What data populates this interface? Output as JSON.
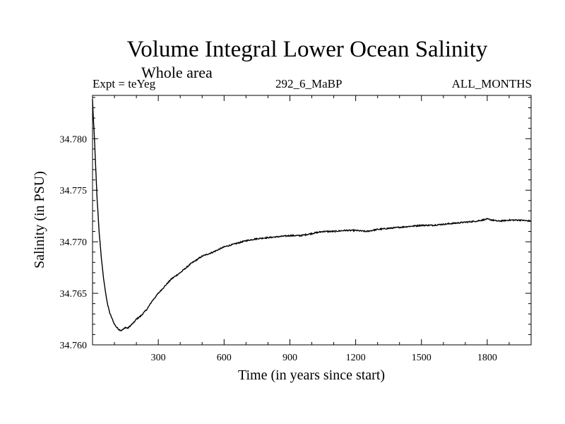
{
  "chart_data": {
    "type": "line",
    "title": "Volume Integral Lower Ocean Salinity",
    "subtitle": "Whole area",
    "left_string": "Expt = teYeg",
    "center_string": "292_6_MaBP",
    "right_string": "ALL_MONTHS",
    "xlabel": "Time (in years since start)",
    "ylabel": "Salinity (in PSU)",
    "xlim": [
      0,
      2000
    ],
    "ylim": [
      34.76,
      34.7842
    ],
    "xticks": [
      300,
      600,
      900,
      1200,
      1500,
      1800
    ],
    "xtick_labels": [
      "300",
      "600",
      "900",
      "1200",
      "1500",
      "1800"
    ],
    "yticks": [
      34.76,
      34.765,
      34.77,
      34.775,
      34.78
    ],
    "ytick_labels": [
      "34.760",
      "34.765",
      "34.770",
      "34.775",
      "34.780"
    ],
    "grid": false,
    "series": [
      {
        "name": "salinity",
        "x": [
          0,
          5,
          10,
          20,
          30,
          40,
          50,
          60,
          70,
          80,
          90,
          100,
          110,
          120,
          130,
          140,
          150,
          160,
          170,
          180,
          190,
          200,
          220,
          250,
          270,
          300,
          330,
          360,
          400,
          450,
          500,
          550,
          600,
          650,
          700,
          750,
          800,
          850,
          900,
          950,
          1000,
          1050,
          1100,
          1150,
          1200,
          1250,
          1300,
          1350,
          1400,
          1450,
          1500,
          1550,
          1600,
          1650,
          1700,
          1750,
          1800,
          1850,
          1900,
          1950,
          2000
        ],
        "y": [
          34.7838,
          34.7815,
          34.7795,
          34.7745,
          34.771,
          34.7685,
          34.7665,
          34.765,
          34.7638,
          34.763,
          34.7625,
          34.762,
          34.7617,
          34.7615,
          34.7614,
          34.7615,
          34.7617,
          34.7616,
          34.7618,
          34.762,
          34.7622,
          34.7625,
          34.7628,
          34.7635,
          34.7642,
          34.765,
          34.7657,
          34.7664,
          34.767,
          34.7679,
          34.7686,
          34.769,
          34.7695,
          34.7698,
          34.7701,
          34.7703,
          34.7704,
          34.7705,
          34.7706,
          34.7706,
          34.7708,
          34.771,
          34.771,
          34.7711,
          34.7711,
          34.771,
          34.7712,
          34.7713,
          34.7714,
          34.7715,
          34.7716,
          34.7716,
          34.7717,
          34.7718,
          34.7719,
          34.772,
          34.7722,
          34.772,
          34.7721,
          34.7721,
          34.772
        ]
      }
    ]
  }
}
